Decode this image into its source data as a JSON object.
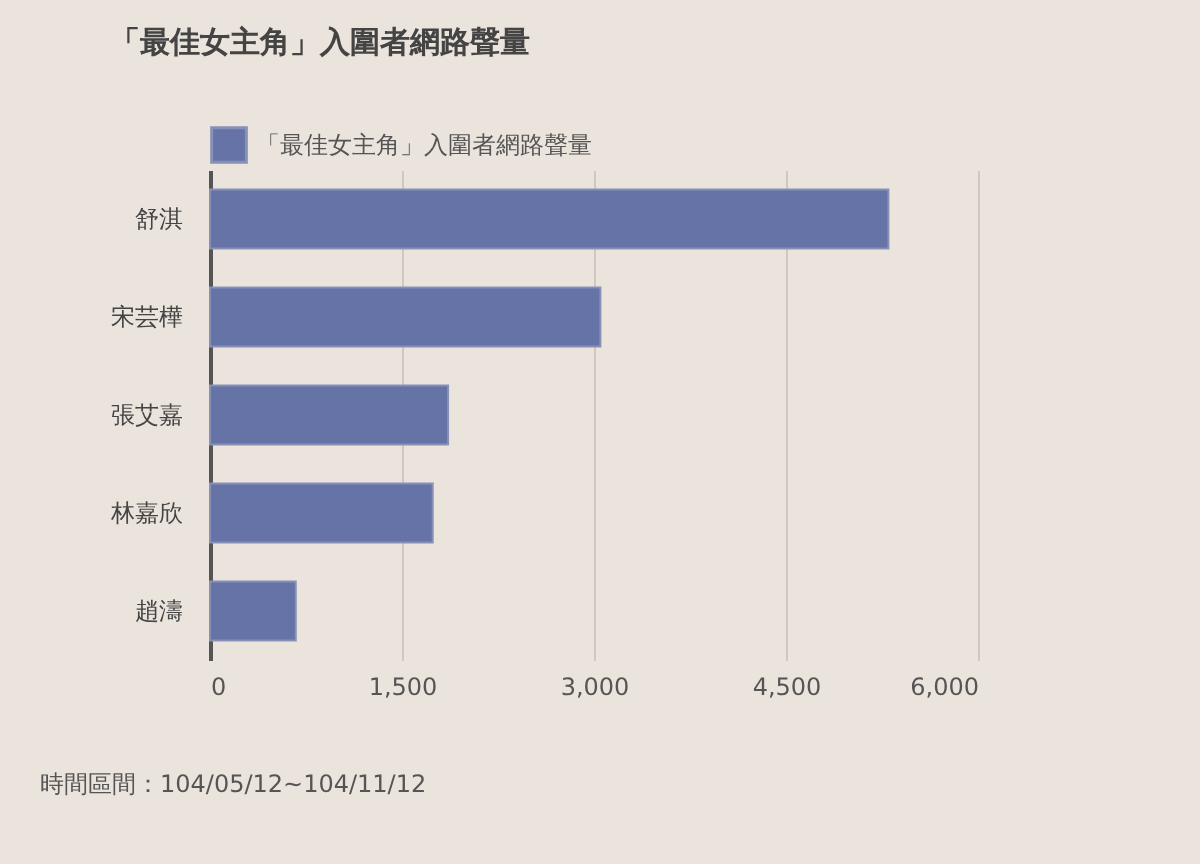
{
  "chart_data": {
    "type": "bar",
    "orientation": "horizontal",
    "title": "「最佳女主角」入圍者網路聲量",
    "categories": [
      "舒淇",
      "宋芸樺",
      "張艾嘉",
      "林嘉欣",
      "趙濤"
    ],
    "series": [
      {
        "name": "「最佳女主角」入圍者網路聲量",
        "color": "#6673a6",
        "values": [
          5300,
          3050,
          1860,
          1740,
          670
        ]
      }
    ],
    "xlim": [
      0,
      6000
    ],
    "xticks": [
      0,
      {
        "value": 1500,
        "label": "1,500"
      },
      {
        "value": 3000,
        "label": "3,000"
      },
      {
        "value": 4500,
        "label": "4,500"
      },
      {
        "value": 6000,
        "label": "6,000"
      }
    ],
    "grid": "x",
    "legend": "top left",
    "annotations": [
      "時間區間：104/05/12~104/11/12"
    ]
  }
}
